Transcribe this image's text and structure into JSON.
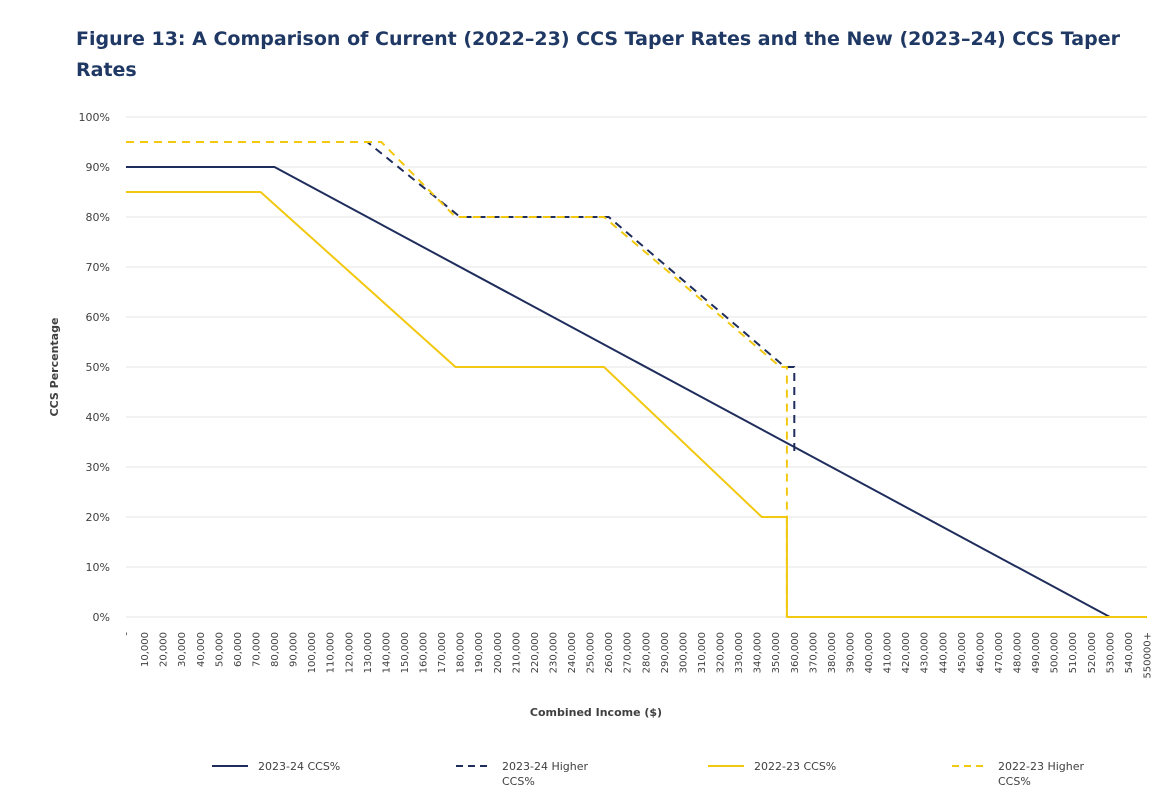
{
  "figure": {
    "title": "Figure 13: A Comparison of Current (2022–23) CCS Taper Rates and the New (2023–24) CCS Taper Rates"
  },
  "chart_data": {
    "type": "line",
    "title": "",
    "xlabel": "Combined Income ($)",
    "ylabel": "CCS Percentage",
    "ylim": [
      0,
      100
    ],
    "grid": true,
    "legend_position": "bottom",
    "y_tick_labels": [
      "0%",
      "10%",
      "20%",
      "30%",
      "40%",
      "50%",
      "60%",
      "70%",
      "80%",
      "90%",
      "100%"
    ],
    "x_tick_labels": [
      "-",
      "10,000",
      "20,000",
      "30,000",
      "40,000",
      "50,000",
      "60,000",
      "70,000",
      "80,000",
      "90,000",
      "100,000",
      "110,000",
      "120,000",
      "130,000",
      "140,000",
      "150,000",
      "160,000",
      "170,000",
      "180,000",
      "190,000",
      "200,000",
      "210,000",
      "220,000",
      "230,000",
      "240,000",
      "250,000",
      "260,000",
      "270,000",
      "280,000",
      "290,000",
      "300,000",
      "310,000",
      "320,000",
      "330,000",
      "340,000",
      "350,000",
      "360,000",
      "370,000",
      "380,000",
      "390,000",
      "400,000",
      "410,000",
      "420,000",
      "430,000",
      "440,000",
      "450,000",
      "460,000",
      "470,000",
      "480,000",
      "490,000",
      "500,000",
      "510,000",
      "520,000",
      "530,000",
      "540,000",
      "550000+"
    ],
    "series": [
      {
        "name": "2023-24 CCS%",
        "color": "#1f2d5c",
        "dash": false,
        "points": [
          [
            0,
            90
          ],
          [
            80000,
            90
          ],
          [
            530000,
            0
          ],
          [
            550000,
            0
          ]
        ]
      },
      {
        "name": "2023-24 Higher CCS%",
        "color": "#1f2d5c",
        "dash": true,
        "points": [
          [
            0,
            95
          ],
          [
            130000,
            95
          ],
          [
            180000,
            80
          ],
          [
            260000,
            80
          ],
          [
            355000,
            50
          ],
          [
            360000,
            50
          ],
          [
            360000,
            33
          ]
        ]
      },
      {
        "name": "2022-23 CCS%",
        "color": "#f2c811",
        "dash": false,
        "points": [
          [
            0,
            85
          ],
          [
            72500,
            85
          ],
          [
            177500,
            50
          ],
          [
            257500,
            50
          ],
          [
            342500,
            20
          ],
          [
            356000,
            20
          ],
          [
            356000,
            0
          ],
          [
            550000,
            0
          ]
        ]
      },
      {
        "name": "2022-23 Higher CCS%",
        "color": "#f2c811",
        "dash": true,
        "points": [
          [
            0,
            95
          ],
          [
            137500,
            95
          ],
          [
            177500,
            80
          ],
          [
            257500,
            80
          ],
          [
            352500,
            50
          ],
          [
            356000,
            50
          ],
          [
            356000,
            0
          ]
        ]
      }
    ]
  }
}
